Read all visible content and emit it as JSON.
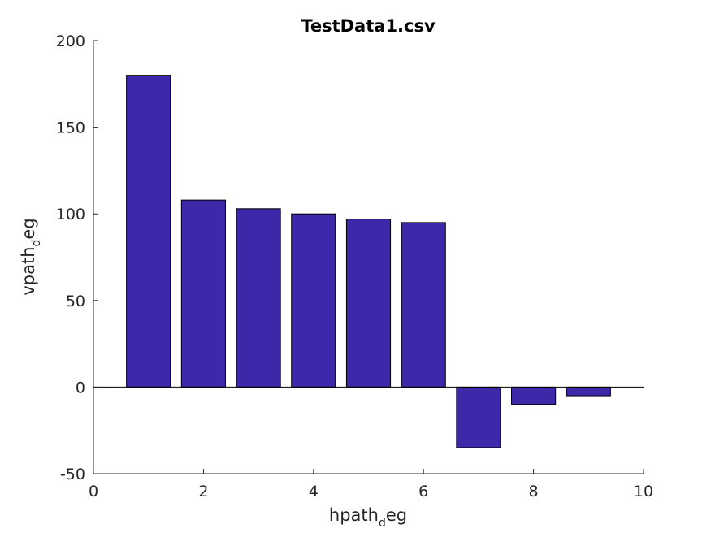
{
  "chart_data": {
    "type": "bar",
    "title": "TestData1.csv",
    "xlabel": {
      "main": "hpath",
      "sub": "d",
      "tail": "eg"
    },
    "ylabel": {
      "main": "vpath",
      "sub": "d",
      "tail": "eg"
    },
    "x": [
      1,
      2,
      3,
      4,
      5,
      6,
      7,
      8,
      9
    ],
    "values": [
      180,
      108,
      103,
      100,
      97,
      95,
      -35,
      -10,
      -5
    ],
    "xlim": [
      0,
      10
    ],
    "ylim": [
      -50,
      200
    ],
    "xticks": [
      0,
      2,
      4,
      6,
      8,
      10
    ],
    "yticks": [
      -50,
      0,
      50,
      100,
      150,
      200
    ],
    "bar_width": 0.8,
    "bar_color": "#3c28a8",
    "grid": false,
    "legend": "none"
  }
}
